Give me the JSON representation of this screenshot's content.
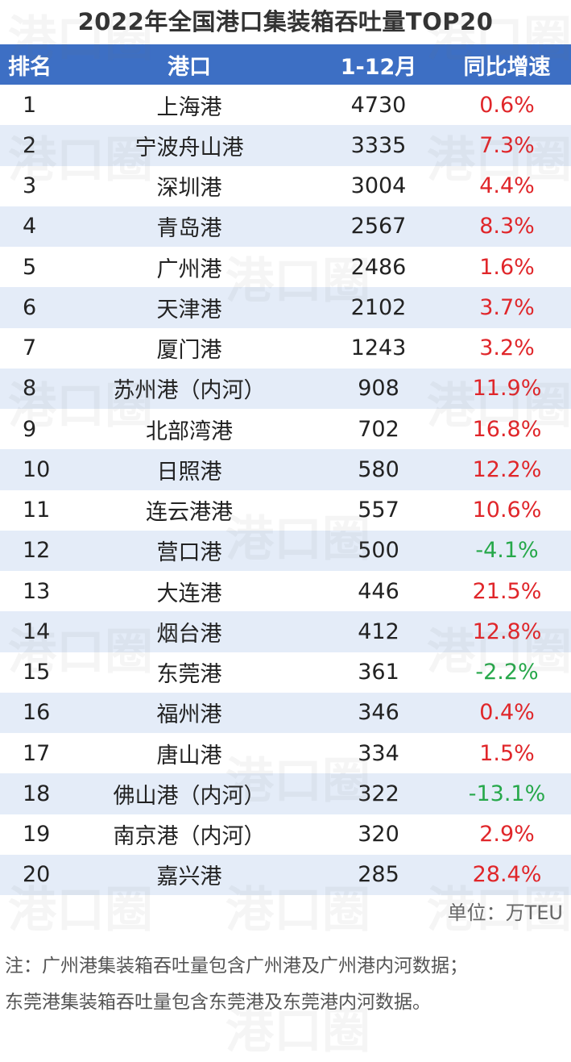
{
  "title": "2022年全国港口集装箱吞吐量TOP20",
  "table": {
    "headers": [
      "排名",
      "港口",
      "1-12月",
      "同比增速"
    ],
    "rows": [
      {
        "rank": "1",
        "port": "上海港",
        "value": "4730",
        "yoy": "0.6%",
        "dir": "pos"
      },
      {
        "rank": "2",
        "port": "宁波舟山港",
        "value": "3335",
        "yoy": "7.3%",
        "dir": "pos"
      },
      {
        "rank": "3",
        "port": "深圳港",
        "value": "3004",
        "yoy": "4.4%",
        "dir": "pos"
      },
      {
        "rank": "4",
        "port": "青岛港",
        "value": "2567",
        "yoy": "8.3%",
        "dir": "pos"
      },
      {
        "rank": "5",
        "port": "广州港",
        "value": "2486",
        "yoy": "1.6%",
        "dir": "pos"
      },
      {
        "rank": "6",
        "port": "天津港",
        "value": "2102",
        "yoy": "3.7%",
        "dir": "pos"
      },
      {
        "rank": "7",
        "port": "厦门港",
        "value": "1243",
        "yoy": "3.2%",
        "dir": "pos"
      },
      {
        "rank": "8",
        "port": "苏州港（内河）",
        "value": "908",
        "yoy": "11.9%",
        "dir": "pos"
      },
      {
        "rank": "9",
        "port": "北部湾港",
        "value": "702",
        "yoy": "16.8%",
        "dir": "pos"
      },
      {
        "rank": "10",
        "port": "日照港",
        "value": "580",
        "yoy": "12.2%",
        "dir": "pos"
      },
      {
        "rank": "11",
        "port": "连云港港",
        "value": "557",
        "yoy": "10.6%",
        "dir": "pos"
      },
      {
        "rank": "12",
        "port": "营口港",
        "value": "500",
        "yoy": "-4.1%",
        "dir": "neg"
      },
      {
        "rank": "13",
        "port": "大连港",
        "value": "446",
        "yoy": "21.5%",
        "dir": "pos"
      },
      {
        "rank": "14",
        "port": "烟台港",
        "value": "412",
        "yoy": "12.8%",
        "dir": "pos"
      },
      {
        "rank": "15",
        "port": "东莞港",
        "value": "361",
        "yoy": "-2.2%",
        "dir": "neg"
      },
      {
        "rank": "16",
        "port": "福州港",
        "value": "346",
        "yoy": "0.4%",
        "dir": "pos"
      },
      {
        "rank": "17",
        "port": "唐山港",
        "value": "334",
        "yoy": "1.5%",
        "dir": "pos"
      },
      {
        "rank": "18",
        "port": "佛山港（内河）",
        "value": "322",
        "yoy": "-13.1%",
        "dir": "neg"
      },
      {
        "rank": "19",
        "port": "南京港（内河）",
        "value": "320",
        "yoy": "2.9%",
        "dir": "pos"
      },
      {
        "rank": "20",
        "port": "嘉兴港",
        "value": "285",
        "yoy": "28.4%",
        "dir": "pos"
      }
    ]
  },
  "unit": "单位：万TEU",
  "note": {
    "line1": "注：广州港集装箱吞吐量包含广州港及广州港内河数据；",
    "line2": "东莞港集装箱吞吐量包含东莞港及东莞港内河数据。"
  },
  "watermark": "港口圈",
  "colors": {
    "header_bg": "#3d6fc4",
    "alt_row_bg": "#e4ecf8",
    "positive": "#e0262a",
    "negative": "#26a84a"
  }
}
